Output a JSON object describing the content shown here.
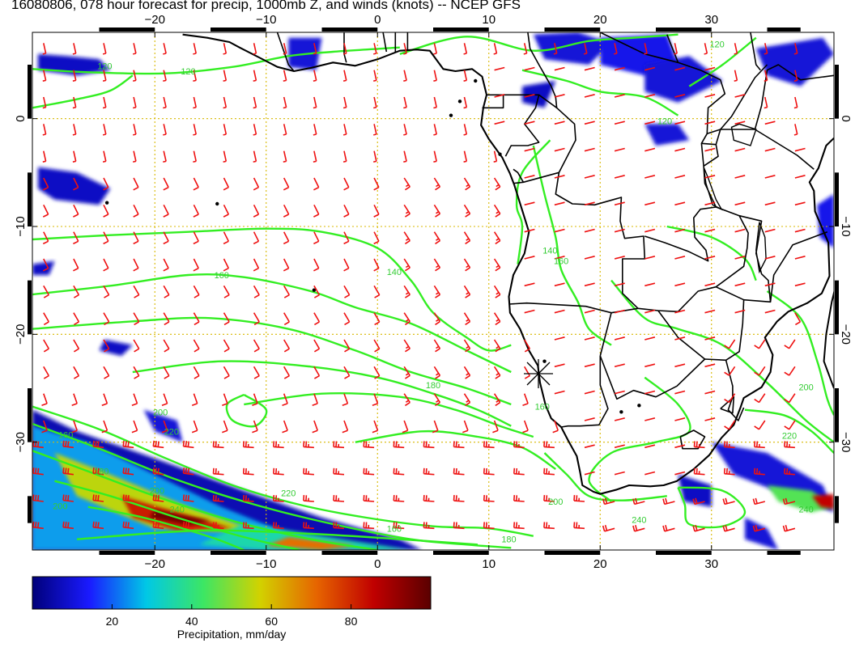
{
  "title": "16080806, 078 hour forecast for precip, 1000mb Z, and winds (knots) -- NCEP GFS",
  "map": {
    "lon_range": [
      -31,
      41
    ],
    "lat_range": [
      -40,
      8
    ],
    "lon_ticks": [
      -20,
      -10,
      0,
      10,
      20,
      30
    ],
    "lat_ticks": [
      0,
      -10,
      -20,
      -30
    ],
    "lon_tick_labels": [
      "−20",
      "−10",
      "0",
      "10",
      "20",
      "30"
    ],
    "lat_tick_labels": [
      "0",
      "−10",
      "−20",
      "−30"
    ],
    "grid": true,
    "colors": {
      "coast": "#000000",
      "contour": "#33ee22",
      "contour_label": "#33cc33",
      "wind_barb": "#ee1111",
      "grid": "#d8b800",
      "precip_ramp": [
        "#00007a",
        "#1a1aff",
        "#00c8e6",
        "#3ce664",
        "#d2d200",
        "#e66400",
        "#c00000",
        "#5a0000"
      ]
    },
    "contour_labels": [
      {
        "text": "120",
        "lon": -24.5,
        "lat": 4.6
      },
      {
        "text": "120",
        "lon": -17,
        "lat": 4.1
      },
      {
        "text": "120",
        "lon": 30.5,
        "lat": 6.6
      },
      {
        "text": "120",
        "lon": 25.8,
        "lat": -0.5
      },
      {
        "text": "160",
        "lon": -14,
        "lat": -14.8
      },
      {
        "text": "140",
        "lon": 1.5,
        "lat": -14.5
      },
      {
        "text": "140",
        "lon": 15.5,
        "lat": -12.5
      },
      {
        "text": "160",
        "lon": 16.5,
        "lat": -13.5
      },
      {
        "text": "180",
        "lon": 5,
        "lat": -25
      },
      {
        "text": "160",
        "lon": 14.8,
        "lat": -27
      },
      {
        "text": "200",
        "lon": -19.5,
        "lat": -27.5
      },
      {
        "text": "220",
        "lon": -18.5,
        "lat": -29.3
      },
      {
        "text": "160",
        "lon": -28,
        "lat": -29.6
      },
      {
        "text": "180",
        "lon": -24.8,
        "lat": -33
      },
      {
        "text": "200",
        "lon": -28.5,
        "lat": -36.2
      },
      {
        "text": "200",
        "lon": -19.8,
        "lat": -34.8
      },
      {
        "text": "220",
        "lon": -8,
        "lat": -35
      },
      {
        "text": "240",
        "lon": -18,
        "lat": -36.5
      },
      {
        "text": "200",
        "lon": 16,
        "lat": -35.8
      },
      {
        "text": "240",
        "lon": 23.5,
        "lat": -37.5
      },
      {
        "text": "160",
        "lon": 1.5,
        "lat": -38.3
      },
      {
        "text": "180",
        "lon": 11.8,
        "lat": -39.3
      },
      {
        "text": "200",
        "lon": 38.5,
        "lat": -25.2
      },
      {
        "text": "220",
        "lon": 37,
        "lat": -29.7
      },
      {
        "text": "240",
        "lon": 38.5,
        "lat": -36.5
      }
    ]
  },
  "colorbar": {
    "label": "Precipitation, mm/day",
    "range": [
      0,
      100
    ],
    "ticks": [
      20,
      40,
      60,
      80
    ],
    "tick_labels": [
      "20",
      "40",
      "60",
      "80"
    ]
  }
}
